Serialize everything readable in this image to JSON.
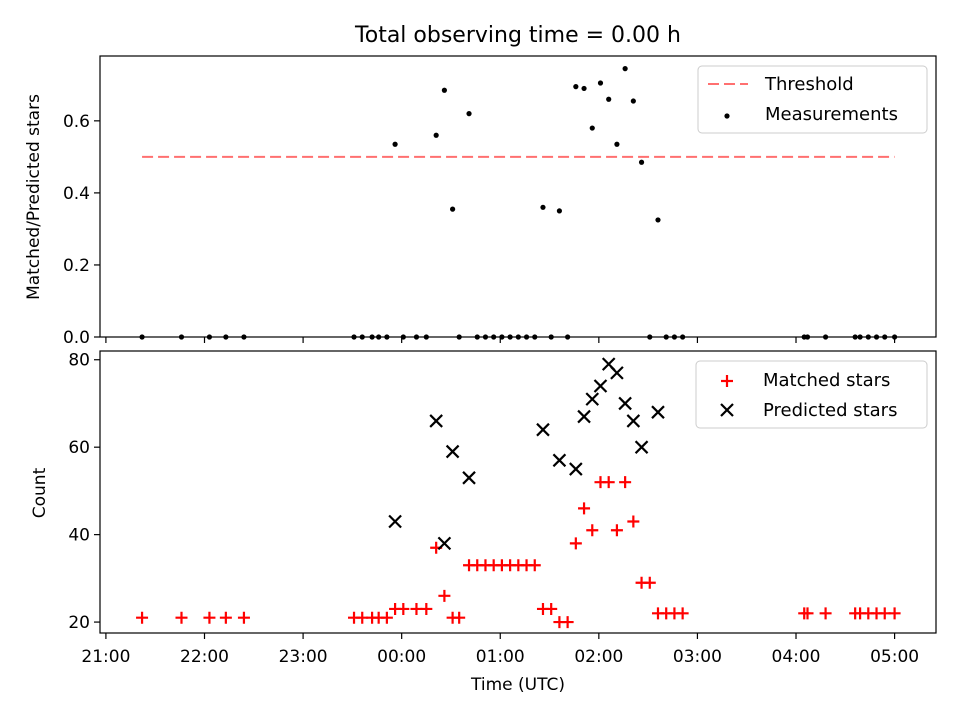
{
  "chart_data": [
    {
      "type": "scatter",
      "title": "Total observing time = 0.00 h",
      "ylabel": "Matched/Predicted stars",
      "xlabel": "",
      "xlim_hours": [
        20.94,
        29.42
      ],
      "ylim": [
        0,
        0.78
      ],
      "yticks": [
        0.0,
        0.2,
        0.4,
        0.6
      ],
      "ytick_labels": [
        "0.0",
        "0.2",
        "0.4",
        "0.6"
      ],
      "legend_position": "top-right",
      "legend": [
        "Threshold",
        "Measurements"
      ],
      "threshold": {
        "name": "Threshold",
        "y": 0.5,
        "x_start": "21:22",
        "x_end": "05:00",
        "color": "#ff7070"
      },
      "series": [
        {
          "name": "Measurements",
          "color": "#000000",
          "points": [
            [
              "21:22",
              0
            ],
            [
              "21:46",
              0
            ],
            [
              "22:03",
              0
            ],
            [
              "22:13",
              0
            ],
            [
              "22:24",
              0
            ],
            [
              "23:31",
              0
            ],
            [
              "23:36",
              0
            ],
            [
              "23:42",
              0
            ],
            [
              "23:46",
              0
            ],
            [
              "23:51",
              0
            ],
            [
              "23:56",
              0.535
            ],
            [
              "00:01",
              0
            ],
            [
              "00:09",
              0
            ],
            [
              "00:15",
              0
            ],
            [
              "00:21",
              0.56
            ],
            [
              "00:26",
              0.685
            ],
            [
              "00:31",
              0.355
            ],
            [
              "00:35",
              0
            ],
            [
              "00:41",
              0.62
            ],
            [
              "00:46",
              0
            ],
            [
              "00:51",
              0
            ],
            [
              "00:56",
              0
            ],
            [
              "01:01",
              0
            ],
            [
              "01:06",
              0
            ],
            [
              "01:11",
              0
            ],
            [
              "01:16",
              0
            ],
            [
              "01:21",
              0
            ],
            [
              "01:26",
              0.36
            ],
            [
              "01:31",
              0
            ],
            [
              "01:36",
              0.35
            ],
            [
              "01:41",
              0
            ],
            [
              "01:46",
              0.695
            ],
            [
              "01:51",
              0.69
            ],
            [
              "01:56",
              0.58
            ],
            [
              "02:01",
              0.705
            ],
            [
              "02:06",
              0.66
            ],
            [
              "02:11",
              0.535
            ],
            [
              "02:16",
              0.745
            ],
            [
              "02:21",
              0.655
            ],
            [
              "02:26",
              0.485
            ],
            [
              "02:31",
              0
            ],
            [
              "02:36",
              0.325
            ],
            [
              "02:41",
              0
            ],
            [
              "02:46",
              0
            ],
            [
              "02:51",
              0
            ],
            [
              "04:05",
              0
            ],
            [
              "04:07",
              0
            ],
            [
              "04:18",
              0
            ],
            [
              "04:36",
              0
            ],
            [
              "04:39",
              0
            ],
            [
              "04:44",
              0
            ],
            [
              "04:49",
              0
            ],
            [
              "04:54",
              0
            ],
            [
              "05:00",
              0
            ]
          ]
        }
      ]
    },
    {
      "type": "scatter",
      "title": "",
      "ylabel": "Count",
      "xlabel": "Time (UTC)",
      "xlim_hours": [
        20.94,
        29.42
      ],
      "ylim": [
        17.5,
        82
      ],
      "yticks": [
        20,
        40,
        60,
        80
      ],
      "ytick_labels": [
        "20",
        "40",
        "60",
        "80"
      ],
      "xticks_hours": [
        21,
        22,
        23,
        24,
        25,
        26,
        27,
        28,
        29
      ],
      "xtick_labels": [
        "21:00",
        "22:00",
        "23:00",
        "00:00",
        "01:00",
        "02:00",
        "03:00",
        "04:00",
        "05:00"
      ],
      "legend_position": "top-right",
      "legend": [
        "Matched stars",
        "Predicted stars"
      ],
      "series": [
        {
          "name": "Matched stars",
          "marker": "plus",
          "color": "#ff0000",
          "points": [
            [
              "21:22",
              21
            ],
            [
              "21:46",
              21
            ],
            [
              "22:03",
              21
            ],
            [
              "22:13",
              21
            ],
            [
              "22:24",
              21
            ],
            [
              "23:31",
              21
            ],
            [
              "23:36",
              21
            ],
            [
              "23:42",
              21
            ],
            [
              "23:46",
              21
            ],
            [
              "23:51",
              21
            ],
            [
              "23:56",
              23
            ],
            [
              "00:01",
              23
            ],
            [
              "00:09",
              23
            ],
            [
              "00:15",
              23
            ],
            [
              "00:21",
              37
            ],
            [
              "00:26",
              26
            ],
            [
              "00:31",
              21
            ],
            [
              "00:35",
              21
            ],
            [
              "00:41",
              33
            ],
            [
              "00:46",
              33
            ],
            [
              "00:51",
              33
            ],
            [
              "00:56",
              33
            ],
            [
              "01:01",
              33
            ],
            [
              "01:06",
              33
            ],
            [
              "01:11",
              33
            ],
            [
              "01:16",
              33
            ],
            [
              "01:21",
              33
            ],
            [
              "01:26",
              23
            ],
            [
              "01:31",
              23
            ],
            [
              "01:36",
              20
            ],
            [
              "01:41",
              20
            ],
            [
              "01:46",
              38
            ],
            [
              "01:51",
              46
            ],
            [
              "01:56",
              41
            ],
            [
              "02:01",
              52
            ],
            [
              "02:06",
              52
            ],
            [
              "02:11",
              41
            ],
            [
              "02:16",
              52
            ],
            [
              "02:21",
              43
            ],
            [
              "02:26",
              29
            ],
            [
              "02:31",
              29
            ],
            [
              "02:36",
              22
            ],
            [
              "02:41",
              22
            ],
            [
              "02:46",
              22
            ],
            [
              "02:51",
              22
            ],
            [
              "04:05",
              22
            ],
            [
              "04:07",
              22
            ],
            [
              "04:18",
              22
            ],
            [
              "04:36",
              22
            ],
            [
              "04:39",
              22
            ],
            [
              "04:44",
              22
            ],
            [
              "04:49",
              22
            ],
            [
              "04:54",
              22
            ],
            [
              "05:00",
              22
            ]
          ]
        },
        {
          "name": "Predicted stars",
          "marker": "x",
          "color": "#000000",
          "points": [
            [
              "23:56",
              43
            ],
            [
              "00:21",
              66
            ],
            [
              "00:26",
              38
            ],
            [
              "00:31",
              59
            ],
            [
              "00:41",
              53
            ],
            [
              "01:26",
              64
            ],
            [
              "01:36",
              57
            ],
            [
              "01:46",
              55
            ],
            [
              "01:51",
              67
            ],
            [
              "01:56",
              71
            ],
            [
              "02:01",
              74
            ],
            [
              "02:06",
              79
            ],
            [
              "02:11",
              77
            ],
            [
              "02:16",
              70
            ],
            [
              "02:21",
              66
            ],
            [
              "02:26",
              60
            ],
            [
              "02:36",
              68
            ]
          ]
        }
      ]
    }
  ]
}
